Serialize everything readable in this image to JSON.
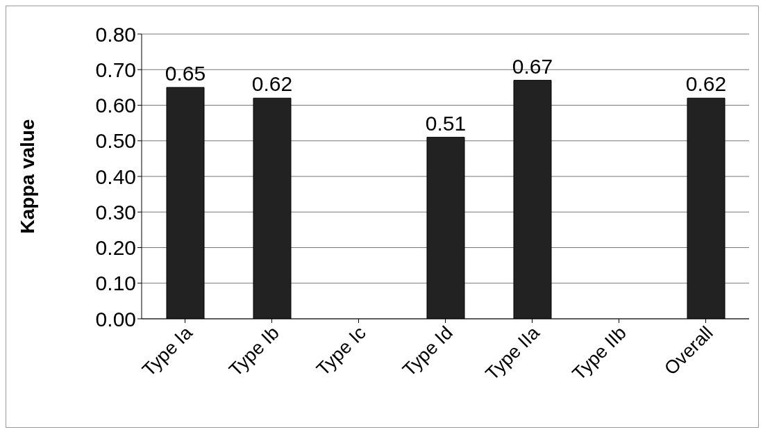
{
  "chart_data": {
    "type": "bar",
    "ylabel": "Kappa value",
    "categories": [
      "Type Ia",
      "Type Ib",
      "Type Ic",
      "Type Id",
      "Type IIa",
      "Type IIb",
      "Overall"
    ],
    "values": [
      0.65,
      0.62,
      null,
      0.51,
      0.67,
      null,
      0.62
    ],
    "color": "#222222",
    "ylim": [
      0,
      0.8
    ],
    "yticks": [
      {
        "value": 0,
        "label": "0.00"
      },
      {
        "value": 0.1,
        "label": "0.10"
      },
      {
        "value": 0.2,
        "label": "0.20"
      },
      {
        "value": 0.3,
        "label": "0.30"
      },
      {
        "value": 0.4,
        "label": "0.40"
      },
      {
        "value": 0.5,
        "label": "0.50"
      },
      {
        "value": 0.6,
        "label": "0.60"
      },
      {
        "value": 0.7,
        "label": "0.70"
      },
      {
        "value": 0.8,
        "label": "0.80"
      }
    ],
    "grid": "y",
    "data_labels": true
  }
}
